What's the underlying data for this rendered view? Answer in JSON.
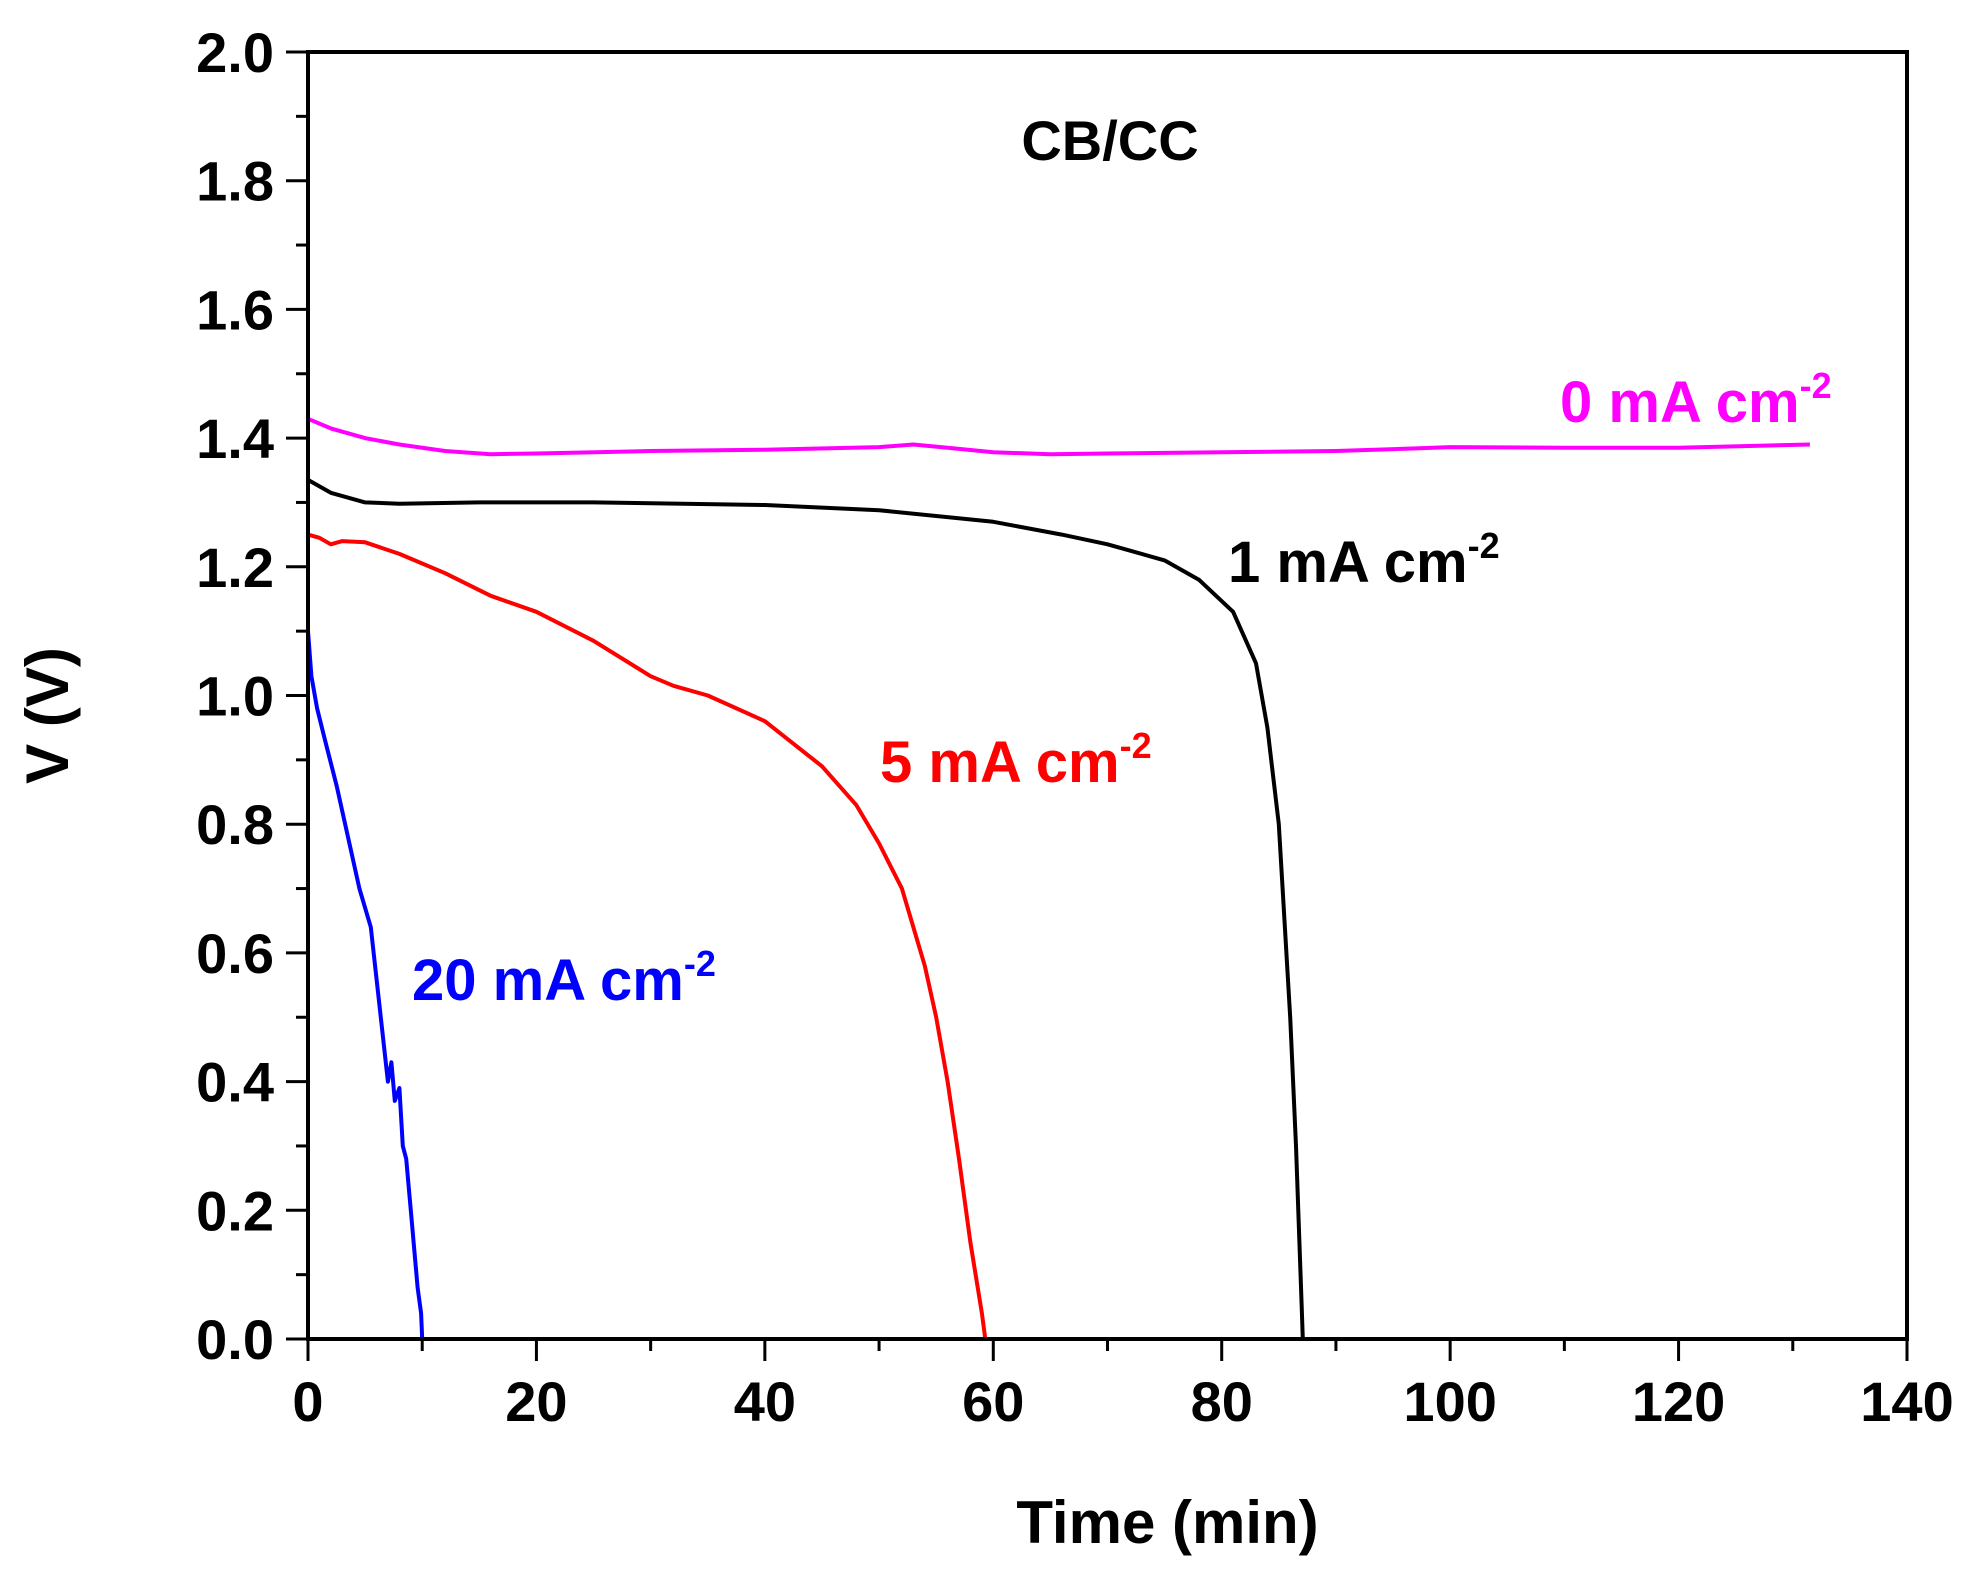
{
  "chart_data": {
    "type": "line",
    "title": "CB/CC",
    "xlabel": "Time (min)",
    "ylabel": "V (V)",
    "xlim": [
      0,
      140
    ],
    "ylim": [
      0.0,
      2.0
    ],
    "xticks": [
      0,
      20,
      40,
      60,
      80,
      100,
      120,
      140
    ],
    "xtick_labels": [
      "0",
      "20",
      "40",
      "60",
      "80",
      "100",
      "120",
      "140"
    ],
    "yticks": [
      0.0,
      0.2,
      0.4,
      0.6,
      0.8,
      1.0,
      1.2,
      1.4,
      1.6,
      1.8,
      2.0
    ],
    "ytick_labels": [
      "0.0",
      "0.2",
      "0.4",
      "0.6",
      "0.8",
      "1.0",
      "1.2",
      "1.4",
      "1.6",
      "1.8",
      "2.0"
    ],
    "grid": false,
    "series": [
      {
        "name": "0 mA cm-2",
        "label_main": "0 mA cm",
        "label_sup": "-2",
        "color": "#ff00ff",
        "x": [
          0,
          2,
          5,
          8,
          12,
          16,
          20,
          30,
          40,
          50,
          53,
          56,
          60,
          65,
          70,
          80,
          90,
          97,
          100,
          110,
          120,
          131.5
        ],
        "y": [
          1.43,
          1.415,
          1.4,
          1.39,
          1.38,
          1.375,
          1.376,
          1.38,
          1.382,
          1.386,
          1.39,
          1.385,
          1.378,
          1.375,
          1.376,
          1.378,
          1.38,
          1.384,
          1.386,
          1.385,
          1.385,
          1.39
        ]
      },
      {
        "name": "1 mA cm-2",
        "label_main": "1 mA cm",
        "label_sup": "-2",
        "color": "#000000",
        "x": [
          0,
          2,
          5,
          8,
          15,
          25,
          40,
          50,
          60,
          66,
          70,
          75,
          78,
          81,
          83,
          84,
          85,
          85.5,
          86,
          86.5,
          87,
          87.1
        ],
        "y": [
          1.335,
          1.315,
          1.3,
          1.298,
          1.3,
          1.3,
          1.296,
          1.288,
          1.27,
          1.25,
          1.235,
          1.21,
          1.18,
          1.13,
          1.05,
          0.95,
          0.8,
          0.65,
          0.5,
          0.3,
          0.05,
          0.0
        ]
      },
      {
        "name": "5 mA cm-2",
        "label_main": "5 mA cm",
        "label_sup": "-2",
        "color": "#ff0000",
        "x": [
          0,
          1,
          2,
          3,
          5,
          8,
          12,
          16,
          20,
          25,
          30,
          32,
          35,
          40,
          45,
          48,
          50,
          52,
          54,
          55,
          56,
          57,
          58,
          59,
          59.3
        ],
        "y": [
          1.25,
          1.245,
          1.235,
          1.24,
          1.238,
          1.22,
          1.19,
          1.155,
          1.13,
          1.085,
          1.03,
          1.015,
          1.0,
          0.96,
          0.89,
          0.83,
          0.77,
          0.7,
          0.58,
          0.5,
          0.4,
          0.28,
          0.15,
          0.04,
          0.0
        ]
      },
      {
        "name": "20 mA cm-2",
        "label_main": "20 mA cm",
        "label_sup": "-2",
        "color": "#0000ff",
        "x": [
          0,
          0.3,
          0.8,
          1.5,
          2.5,
          3.5,
          4.5,
          5.5,
          6,
          6.5,
          7,
          7.3,
          7.6,
          8,
          8.3,
          8.6,
          9,
          9.3,
          9.6,
          9.9,
          10
        ],
        "y": [
          1.1,
          1.03,
          0.98,
          0.93,
          0.86,
          0.78,
          0.7,
          0.64,
          0.56,
          0.48,
          0.4,
          0.43,
          0.37,
          0.39,
          0.3,
          0.28,
          0.2,
          0.14,
          0.08,
          0.04,
          0.0
        ]
      }
    ]
  }
}
